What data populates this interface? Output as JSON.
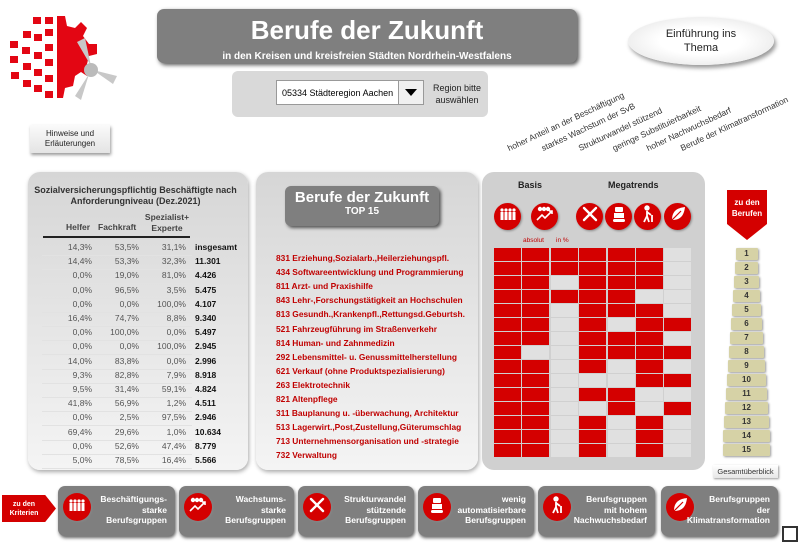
{
  "colors": {
    "accent": "#d40000",
    "dark_gray": "#7f7f7f",
    "beige": "#d6d2a6",
    "job_text": "#c00000"
  },
  "header": {
    "title": "Berufe der Zukunft",
    "subtitle": "in den Kreisen und kreisfreien Städten Nordrhein-Westfalens"
  },
  "intro_button": "Einführung ins Thema",
  "notes_button": "Hinweise und Erläuterungen",
  "region": {
    "selected": "05334 Städteregion Aachen",
    "hint": "Region bitte auswählen"
  },
  "criteria_labels": [
    "hoher Anteil an der Beschäftigung",
    "starkes Wachstum der SvB",
    "Strukturwandel stützend",
    "geringe Substituierbarkeit",
    "hoher Nachwuchsbedarf",
    "Berufe der Klimatransformation"
  ],
  "table": {
    "title": "Sozialversicherungspflichtig Beschäftigte nach Anforderungniveau (Dez.2021)",
    "headers": {
      "helfer": "Helfer",
      "fachkraft": "Fachkraft",
      "spezialist": "Spezialist+ Experte",
      "total": "insgesamt"
    },
    "region_row": [
      "14,3%",
      "53,5%",
      "31,1%"
    ],
    "rows": [
      [
        "14,4%",
        "53,3%",
        "32,3%",
        "11.301"
      ],
      [
        "0,0%",
        "19,0%",
        "81,0%",
        "4.426"
      ],
      [
        "0,0%",
        "96,5%",
        "3,5%",
        "5.475"
      ],
      [
        "0,0%",
        "0,0%",
        "100,0%",
        "4.107"
      ],
      [
        "16,4%",
        "74,7%",
        "8,8%",
        "9.340"
      ],
      [
        "0,0%",
        "100,0%",
        "0,0%",
        "5.497"
      ],
      [
        "0,0%",
        "0,0%",
        "100,0%",
        "2.945"
      ],
      [
        "14,0%",
        "83,8%",
        "0,0%",
        "2.996"
      ],
      [
        "9,3%",
        "82,8%",
        "7,9%",
        "8.918"
      ],
      [
        "9,5%",
        "31,4%",
        "59,1%",
        "4.824"
      ],
      [
        "41,8%",
        "56,9%",
        "1,2%",
        "4.511"
      ],
      [
        "0,0%",
        "2,5%",
        "97,5%",
        "2.946"
      ],
      [
        "69,4%",
        "29,6%",
        "1,0%",
        "10.634"
      ],
      [
        "0,0%",
        "52,6%",
        "47,4%",
        "8.779"
      ],
      [
        "5,0%",
        "78,5%",
        "16,4%",
        "5.566"
      ]
    ]
  },
  "top15": {
    "title": "Berufe der Zukunft",
    "subtitle": "TOP 15",
    "jobs": [
      "831 Erziehung,Sozialarb.,Heilerziehungspfl.",
      "434 Softwareentwicklung und Programmierung",
      "811 Arzt- und Praxishilfe",
      "843 Lehr-,Forschungstätigkeit an Hochschulen",
      "813 Gesundh.,Krankenpfl.,Rettungsd.Geburtsh.",
      "521 Fahrzeugführung im Straßenverkehr",
      "814 Human- und Zahnmedizin",
      "292 Lebensmittel- u. Genussmittelherstellung",
      "621 Verkauf (ohne Produktspezialisierung)",
      "263 Elektrotechnik",
      "821 Altenpflege",
      "311 Bauplanung u. -überwachung, Architektur",
      "513 Lagerwirt.,Post,Zustellung,Güterumschlag",
      "713 Unternehmensorganisation und -strategie",
      "732 Verwaltung"
    ]
  },
  "matrix": {
    "basis_label": "Basis",
    "megatrends_label": "Megatrends",
    "absolut_label": "absolut",
    "percent_label": "in %",
    "icons": [
      "employees-icon",
      "growth-icon",
      "tools-icon",
      "robot-icon",
      "elderly-icon",
      "leaf-icon"
    ],
    "cells": [
      [
        1,
        1,
        1,
        1,
        1,
        1,
        0
      ],
      [
        1,
        1,
        1,
        1,
        1,
        1,
        0
      ],
      [
        1,
        1,
        0,
        1,
        1,
        1,
        0
      ],
      [
        1,
        1,
        1,
        1,
        1,
        0,
        0
      ],
      [
        1,
        1,
        0,
        1,
        1,
        1,
        0
      ],
      [
        1,
        1,
        0,
        1,
        0,
        1,
        1
      ],
      [
        1,
        1,
        0,
        1,
        1,
        1,
        0
      ],
      [
        1,
        0,
        0,
        1,
        1,
        1,
        1
      ],
      [
        1,
        1,
        0,
        1,
        0,
        1,
        0
      ],
      [
        1,
        1,
        0,
        0,
        0,
        1,
        1
      ],
      [
        1,
        1,
        0,
        1,
        1,
        0,
        0
      ],
      [
        1,
        1,
        0,
        0,
        1,
        0,
        1
      ],
      [
        1,
        1,
        0,
        1,
        0,
        1,
        0
      ],
      [
        1,
        1,
        0,
        1,
        0,
        1,
        0
      ],
      [
        1,
        1,
        0,
        1,
        0,
        1,
        0
      ]
    ]
  },
  "nav": {
    "to_jobs": "zu den Berufen",
    "numbers": [
      "1",
      "2",
      "3",
      "4",
      "5",
      "6",
      "7",
      "8",
      "9",
      "10",
      "11",
      "12",
      "13",
      "14",
      "15"
    ],
    "overview": "Gesamtüberblick",
    "to_criteria": "zu den Kriterien"
  },
  "bottom_buttons": [
    {
      "icon": "employees-icon",
      "label": "Beschäftigungs-\nstarke\nBerufsgruppen"
    },
    {
      "icon": "growth-icon",
      "label": "Wachstums-\nstarke\nBerufsgruppen"
    },
    {
      "icon": "tools-icon",
      "label": "Strukturwandel\nstützende\nBerufsgruppen"
    },
    {
      "icon": "robot-icon",
      "label": "wenig\nautomatisierbare\nBerufsgruppen"
    },
    {
      "icon": "elderly-icon",
      "label": "Berufsgruppen\nmit hohem\nNachwuchsbedarf"
    },
    {
      "icon": "leaf-icon",
      "label": "Berufsgruppen\nder\nKlimatransformation"
    }
  ]
}
